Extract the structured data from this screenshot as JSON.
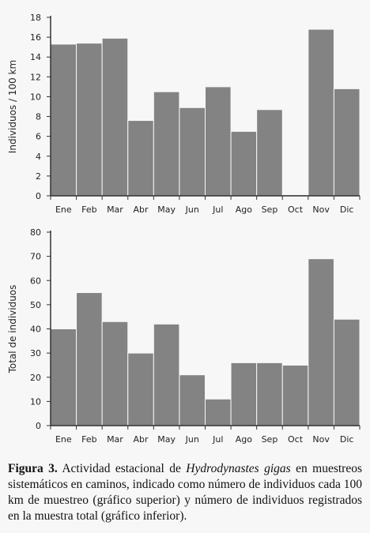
{
  "chart_data": [
    {
      "type": "bar",
      "ylabel": "Individuos / 100 km",
      "categories": [
        "Ene",
        "Feb",
        "Mar",
        "Abr",
        "May",
        "Jun",
        "Jul",
        "Ago",
        "Sep",
        "Oct",
        "Nov",
        "Dic"
      ],
      "values": [
        15.3,
        15.4,
        15.9,
        7.6,
        10.5,
        8.9,
        11.0,
        6.5,
        8.7,
        0.1,
        16.8,
        10.8
      ],
      "ylim": [
        0,
        18
      ],
      "yticks": [
        "0",
        "2",
        "4",
        "6",
        "8",
        "10",
        "12",
        "14",
        "16",
        "18"
      ],
      "grid": false,
      "bar_color": "#838383"
    },
    {
      "type": "bar",
      "ylabel": "Total de individuos",
      "categories": [
        "Ene",
        "Feb",
        "Mar",
        "Abr",
        "May",
        "Jun",
        "Jul",
        "Ago",
        "Sep",
        "Oct",
        "Nov",
        "Dic"
      ],
      "values": [
        40,
        55,
        43,
        30,
        42,
        21,
        11,
        26,
        26,
        25,
        69,
        44
      ],
      "ylim": [
        0,
        80
      ],
      "yticks": [
        "0",
        "10",
        "20",
        "30",
        "40",
        "50",
        "60",
        "70",
        "80"
      ],
      "grid": false,
      "bar_color": "#838383"
    }
  ],
  "caption": {
    "label": "Figura 3.",
    "text_before": " Actividad estacional de ",
    "species": "Hydrodynastes gigas",
    "text_after": " en muestreos sistemáticos en caminos, indicado como número de individuos cada 100 km de muestreo (gráfico superior) y número de individuos registrados en la muestra total (gráfico inferior)."
  }
}
